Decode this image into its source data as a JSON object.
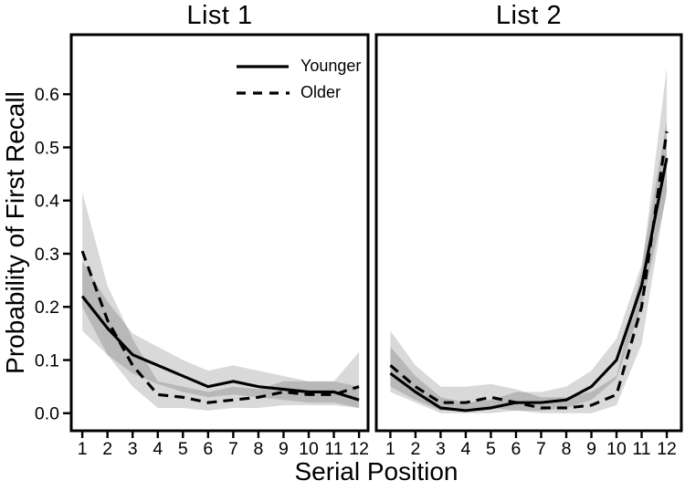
{
  "figure": {
    "ylabel": "Probability of First Recall",
    "xlabel": "Serial Position",
    "background_color": "#ffffff",
    "line_color": "#000000",
    "band_color": "#000000",
    "band_opacity": 0.15,
    "legend": [
      {
        "label": "Younger",
        "style": "solid"
      },
      {
        "label": "Older",
        "style": "dashed"
      }
    ]
  },
  "chart_data": [
    {
      "type": "line",
      "title": "List 1",
      "xlabel": "Serial Position",
      "ylabel": "Probability of First Recall",
      "x": [
        1,
        2,
        3,
        4,
        5,
        6,
        7,
        8,
        9,
        10,
        11,
        12
      ],
      "xlim": [
        0.56,
        12.36
      ],
      "ylim": [
        -0.033,
        0.712
      ],
      "yticks": [
        0.0,
        0.1,
        0.2,
        0.3,
        0.4,
        0.5,
        0.6
      ],
      "ytick_labels": [
        "0.0",
        "0.1",
        "0.2",
        "0.3",
        "0.4",
        "0.5",
        "0.6"
      ],
      "grid": false,
      "legend_position": "top-right-inset",
      "series": [
        {
          "name": "Younger",
          "style": "solid",
          "values": [
            0.22,
            0.16,
            0.11,
            0.09,
            0.07,
            0.05,
            0.06,
            0.05,
            0.045,
            0.04,
            0.04,
            0.025
          ],
          "band_lower": [
            0.155,
            0.11,
            0.075,
            0.055,
            0.04,
            0.03,
            0.035,
            0.03,
            0.025,
            0.02,
            0.02,
            0.01
          ],
          "band_upper": [
            0.285,
            0.21,
            0.15,
            0.125,
            0.1,
            0.08,
            0.09,
            0.08,
            0.07,
            0.06,
            0.06,
            0.05
          ]
        },
        {
          "name": "Older",
          "style": "dashed",
          "values": [
            0.305,
            0.175,
            0.09,
            0.035,
            0.03,
            0.02,
            0.025,
            0.03,
            0.04,
            0.035,
            0.035,
            0.05
          ],
          "band_lower": [
            0.2,
            0.11,
            0.05,
            0.01,
            0.01,
            0.005,
            0.01,
            0.01,
            0.015,
            0.015,
            0.015,
            0.01
          ],
          "band_upper": [
            0.415,
            0.24,
            0.14,
            0.06,
            0.05,
            0.04,
            0.05,
            0.045,
            0.06,
            0.06,
            0.06,
            0.115
          ]
        }
      ]
    },
    {
      "type": "line",
      "title": "List 2",
      "xlabel": "Serial Position",
      "ylabel": "Probability of First Recall",
      "x": [
        1,
        2,
        3,
        4,
        5,
        6,
        7,
        8,
        9,
        10,
        11,
        12
      ],
      "xlim": [
        0.44,
        12.58
      ],
      "ylim": [
        -0.033,
        0.712
      ],
      "yticks": [
        0.0,
        0.1,
        0.2,
        0.3,
        0.4,
        0.5,
        0.6
      ],
      "ytick_labels": [
        "0.0",
        "0.1",
        "0.2",
        "0.3",
        "0.4",
        "0.5",
        "0.6"
      ],
      "grid": false,
      "legend_position": "none",
      "series": [
        {
          "name": "Younger",
          "style": "solid",
          "values": [
            0.075,
            0.04,
            0.01,
            0.005,
            0.01,
            0.02,
            0.02,
            0.025,
            0.05,
            0.1,
            0.24,
            0.48
          ],
          "band_lower": [
            0.04,
            0.02,
            0.0,
            0.0,
            0.0,
            0.005,
            0.005,
            0.01,
            0.025,
            0.065,
            0.2,
            0.41
          ],
          "band_upper": [
            0.125,
            0.07,
            0.03,
            0.02,
            0.025,
            0.04,
            0.04,
            0.05,
            0.08,
            0.14,
            0.28,
            0.55
          ]
        },
        {
          "name": "Older",
          "style": "dashed",
          "values": [
            0.09,
            0.05,
            0.02,
            0.02,
            0.03,
            0.02,
            0.01,
            0.01,
            0.015,
            0.035,
            0.2,
            0.53
          ],
          "band_lower": [
            0.05,
            0.025,
            0.005,
            0.005,
            0.01,
            0.005,
            0.0,
            0.0,
            0.0,
            0.015,
            0.13,
            0.42
          ],
          "band_upper": [
            0.155,
            0.09,
            0.05,
            0.05,
            0.055,
            0.045,
            0.03,
            0.03,
            0.04,
            0.07,
            0.27,
            0.65
          ]
        }
      ]
    }
  ]
}
